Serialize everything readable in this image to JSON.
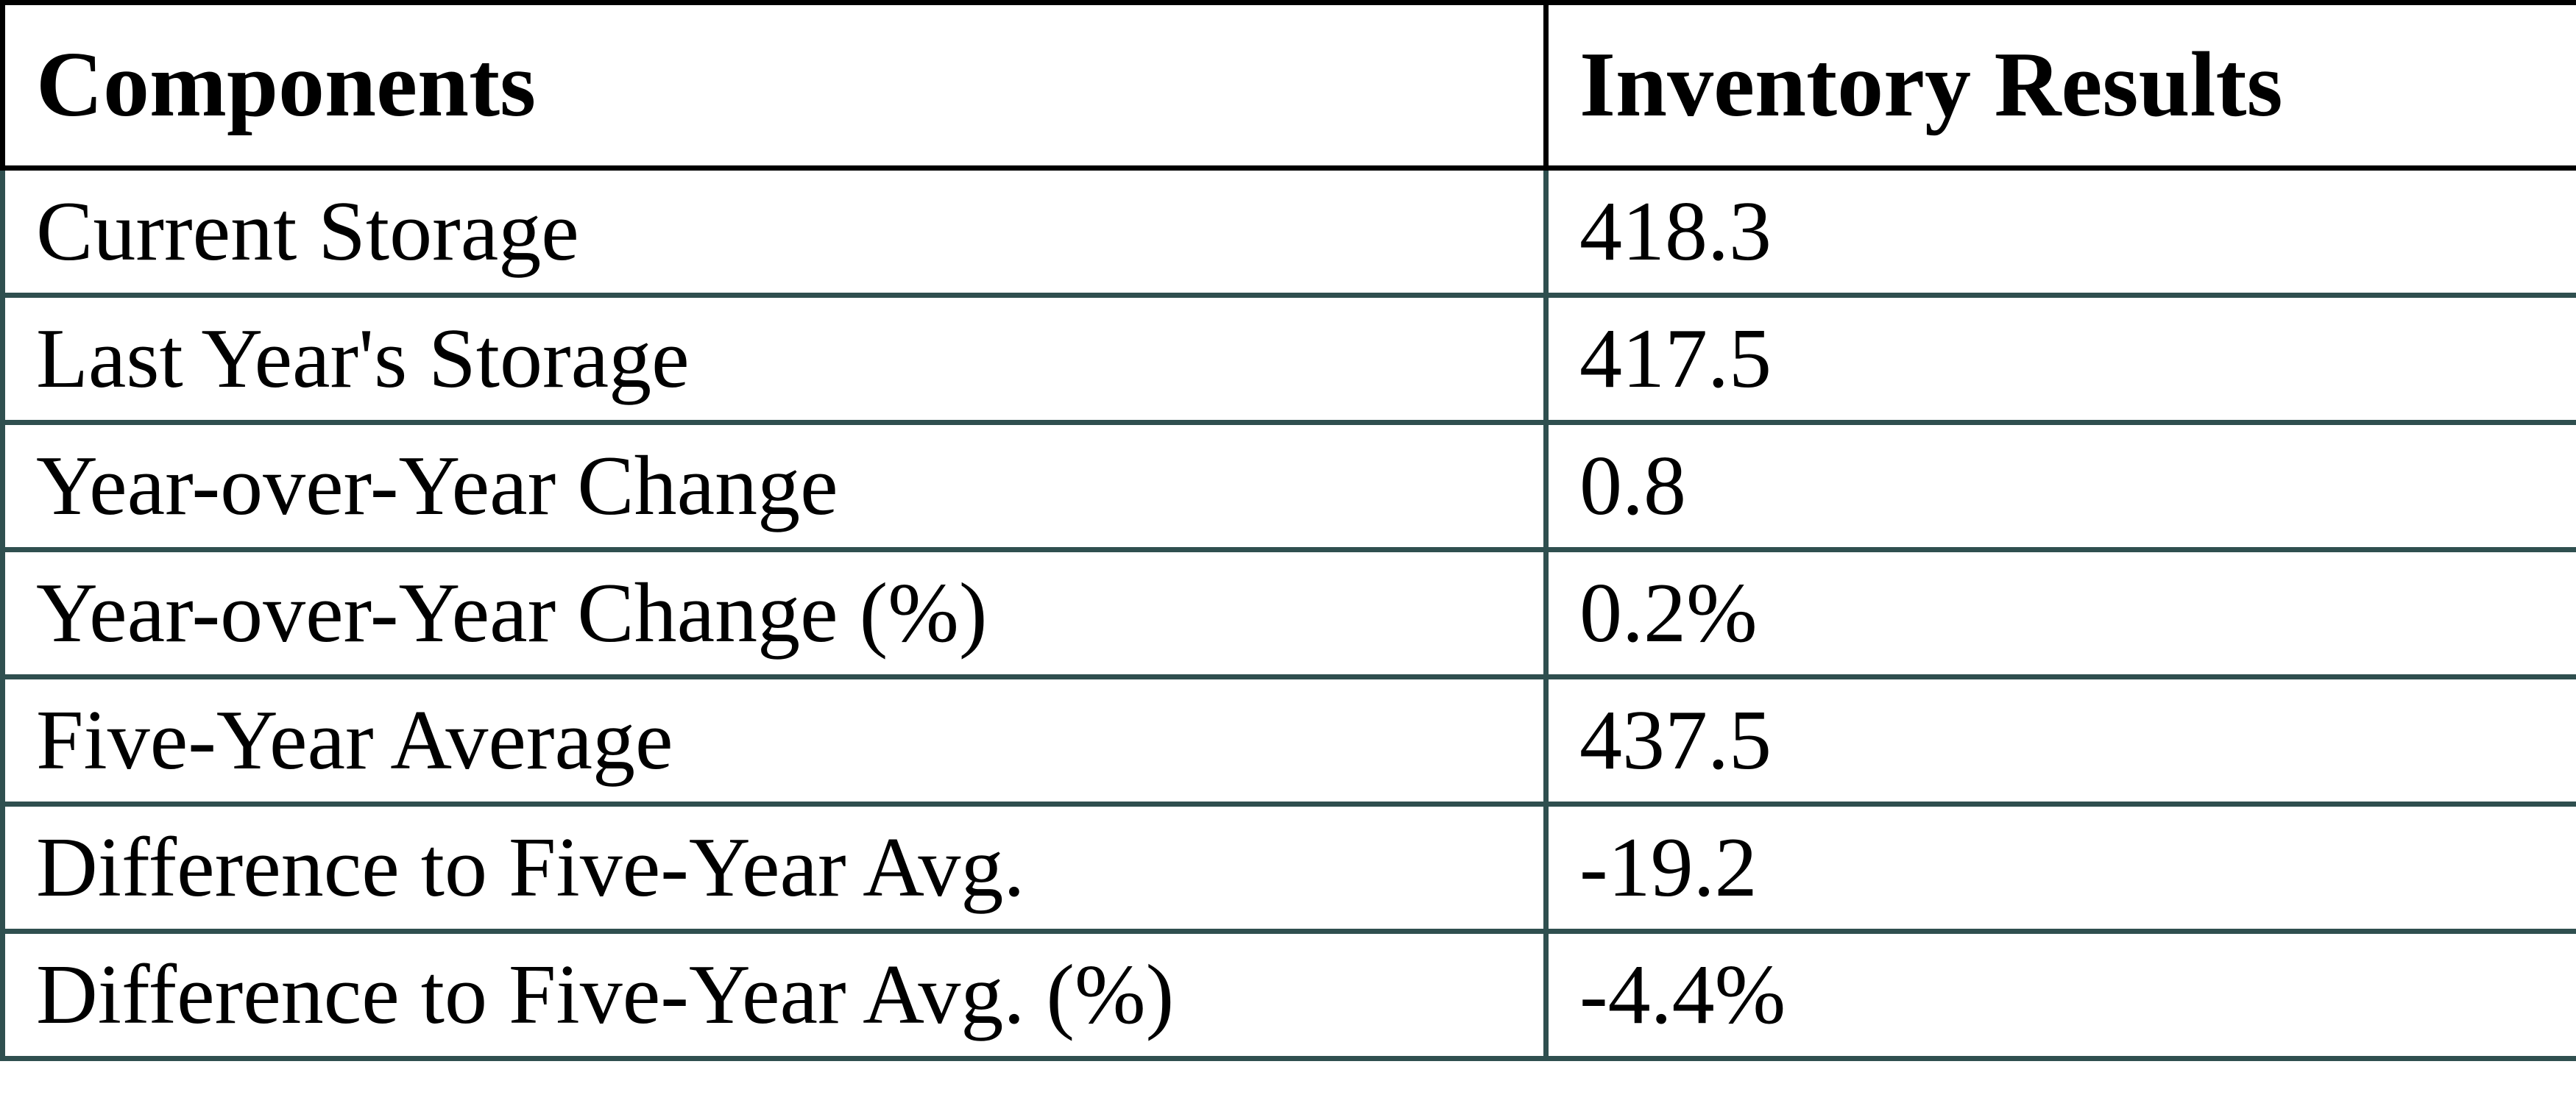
{
  "table": {
    "columns": [
      "Components",
      "Inventory Results"
    ],
    "rows": [
      {
        "label": "Current Storage",
        "value": "418.3"
      },
      {
        "label": "Last Year's Storage",
        "value": "417.5"
      },
      {
        "label": "Year-over-Year Change",
        "value": "0.8"
      },
      {
        "label": "Year-over-Year Change (%)",
        "value": "0.2%"
      },
      {
        "label": "Five-Year Average",
        "value": "437.5"
      },
      {
        "label": "Difference to Five-Year Avg.",
        "value": "-19.2"
      },
      {
        "label": "Difference to Five-Year Avg. (%)",
        "value": "-4.4%"
      }
    ]
  },
  "colors": {
    "header_border": "#000000",
    "body_border": "#2F4F4F",
    "text": "#000000",
    "background": "#FFFFFF"
  }
}
